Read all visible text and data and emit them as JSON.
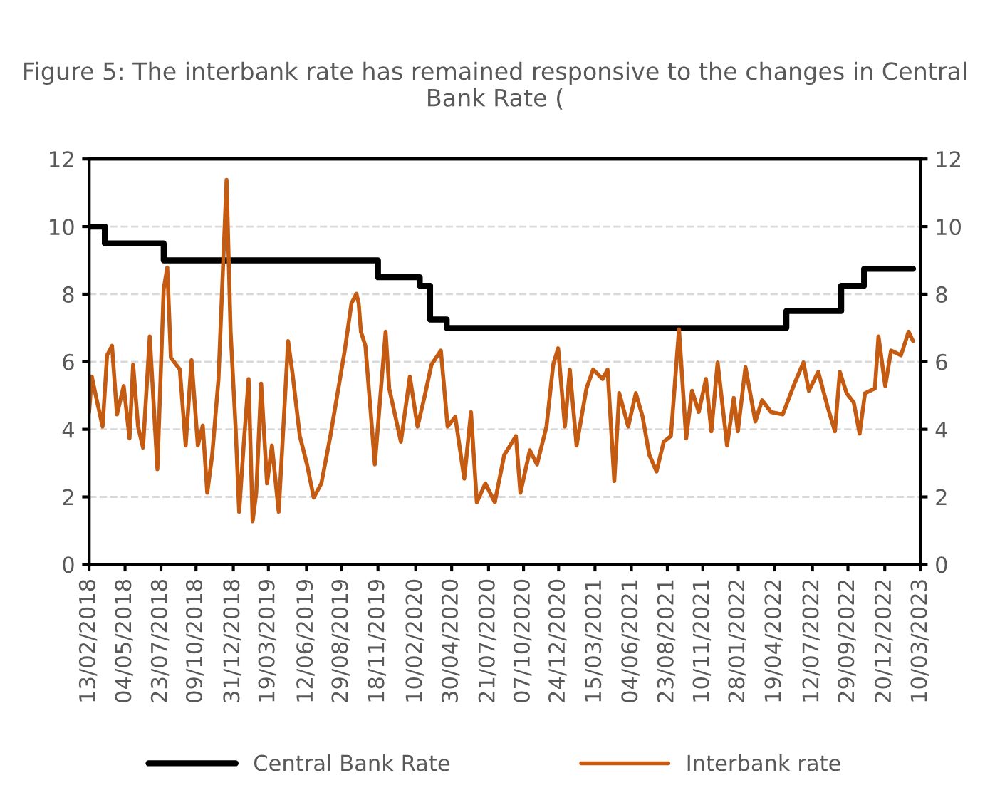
{
  "chart_data": {
    "type": "line",
    "title": "Figure 5: The interbank rate has remained responsive to the changes in Central Bank Rate (",
    "xlim": [
      "2018-02-13",
      "2023-03-10"
    ],
    "xticks": [
      {
        "value": "2018-02-13",
        "label": "13/02/2018"
      },
      {
        "value": "2018-05-04",
        "label": "04/05/2018"
      },
      {
        "value": "2018-07-23",
        "label": "23/07/2018"
      },
      {
        "value": "2018-10-09",
        "label": "09/10/2018"
      },
      {
        "value": "2018-12-31",
        "label": "31/12/2018"
      },
      {
        "value": "2019-03-19",
        "label": "19/03/2019"
      },
      {
        "value": "2019-06-12",
        "label": "12/06/2019"
      },
      {
        "value": "2019-08-29",
        "label": "29/08/2019"
      },
      {
        "value": "2019-11-18",
        "label": "18/11/2019"
      },
      {
        "value": "2020-02-10",
        "label": "10/02/2020"
      },
      {
        "value": "2020-04-30",
        "label": "30/04/2020"
      },
      {
        "value": "2020-07-21",
        "label": "21/07/2020"
      },
      {
        "value": "2020-10-07",
        "label": "07/10/2020"
      },
      {
        "value": "2020-12-24",
        "label": "24/12/2020"
      },
      {
        "value": "2021-03-15",
        "label": "15/03/2021"
      },
      {
        "value": "2021-06-04",
        "label": "04/06/2021"
      },
      {
        "value": "2021-08-23",
        "label": "23/08/2021"
      },
      {
        "value": "2021-11-10",
        "label": "10/11/2021"
      },
      {
        "value": "2022-01-28",
        "label": "28/01/2022"
      },
      {
        "value": "2022-04-19",
        "label": "19/04/2022"
      },
      {
        "value": "2022-07-12",
        "label": "12/07/2022"
      },
      {
        "value": "2022-09-29",
        "label": "29/09/2022"
      },
      {
        "value": "2022-12-20",
        "label": "20/12/2022"
      },
      {
        "value": "2023-03-10",
        "label": "10/03/2023"
      }
    ],
    "ylim": [
      0,
      12
    ],
    "yticks": [
      0,
      2,
      4,
      6,
      8,
      10,
      12
    ],
    "y2lim": [
      0,
      12
    ],
    "y2ticks": [
      0,
      2,
      4,
      6,
      8,
      10,
      12
    ],
    "grid": "y",
    "legend": "bottom",
    "series": [
      {
        "name": "Central Bank Rate",
        "color": "#000000",
        "type": "step",
        "x": [
          "2018-02-13",
          "2018-03-20",
          "2018-07-29",
          "2019-11-18",
          "2020-02-19",
          "2020-03-13",
          "2020-04-19",
          "2022-05-15",
          "2022-09-14",
          "2022-11-04",
          "2023-02-21"
        ],
        "values": [
          10,
          9.5,
          9,
          8.5,
          8.25,
          7.25,
          7,
          7.5,
          8.25,
          8.75,
          8.75
        ]
      },
      {
        "name": "Interbank rate",
        "color": "#c55a11",
        "x": [
          "2018-02-13",
          "2018-02-19",
          "2018-03-01",
          "2018-03-15",
          "2018-03-25",
          "2018-04-05",
          "2018-04-16",
          "2018-05-01",
          "2018-05-14",
          "2018-05-22",
          "2018-06-02",
          "2018-06-13",
          "2018-06-28",
          "2018-07-15",
          "2018-07-29",
          "2018-08-06",
          "2018-08-14",
          "2018-09-03",
          "2018-09-16",
          "2018-09-29",
          "2018-10-13",
          "2018-10-24",
          "2018-11-03",
          "2018-11-14",
          "2018-11-28",
          "2018-12-16",
          "2018-12-25",
          "2019-01-05",
          "2019-01-13",
          "2019-01-23",
          "2019-02-03",
          "2019-02-12",
          "2019-02-20",
          "2019-03-03",
          "2019-03-16",
          "2019-03-27",
          "2019-04-11",
          "2019-05-02",
          "2019-05-12",
          "2019-05-28",
          "2019-06-13",
          "2019-06-28",
          "2019-07-15",
          "2019-08-04",
          "2019-09-05",
          "2019-09-20",
          "2019-10-01",
          "2019-10-06",
          "2019-10-11",
          "2019-10-21",
          "2019-11-11",
          "2019-12-05",
          "2019-12-13",
          "2020-01-08",
          "2020-01-28",
          "2020-02-14",
          "2020-02-29",
          "2020-03-16",
          "2020-04-06",
          "2020-04-21",
          "2020-05-08",
          "2020-05-28",
          "2020-06-12",
          "2020-06-25",
          "2020-07-14",
          "2020-08-04",
          "2020-08-25",
          "2020-09-20",
          "2020-09-30",
          "2020-10-21",
          "2020-11-06",
          "2020-11-27",
          "2020-12-12",
          "2020-12-23",
          "2021-01-07",
          "2021-01-18",
          "2021-02-02",
          "2021-02-24",
          "2021-03-11",
          "2021-04-01",
          "2021-04-12",
          "2021-04-27",
          "2021-05-08",
          "2021-05-28",
          "2021-06-14",
          "2021-06-29",
          "2021-07-14",
          "2021-07-30",
          "2021-08-15",
          "2021-08-31",
          "2021-09-18",
          "2021-10-04",
          "2021-10-17",
          "2021-11-01",
          "2021-11-17",
          "2021-11-29",
          "2021-12-13",
          "2022-01-03",
          "2022-01-18",
          "2022-01-27",
          "2022-02-13",
          "2022-03-07",
          "2022-03-22",
          "2022-04-11",
          "2022-05-07",
          "2022-06-02",
          "2022-06-22",
          "2022-07-04",
          "2022-07-25",
          "2022-08-15",
          "2022-08-31",
          "2022-09-11",
          "2022-09-26",
          "2022-10-12",
          "2022-10-25",
          "2022-11-06",
          "2022-11-28",
          "2022-12-06",
          "2022-12-21",
          "2023-01-03",
          "2023-01-25",
          "2023-02-11",
          "2023-02-21"
        ],
        "values": [
          4.5,
          5.56,
          4.93,
          4.08,
          6.19,
          6.47,
          4.44,
          5.28,
          3.73,
          5.91,
          4.08,
          3.46,
          6.75,
          2.82,
          8.15,
          8.79,
          6.12,
          5.77,
          3.52,
          6.05,
          3.52,
          4.11,
          2.12,
          3.24,
          5.49,
          11.38,
          6.89,
          4.08,
          1.56,
          3.52,
          5.49,
          1.28,
          2.12,
          5.35,
          2.4,
          3.52,
          1.56,
          6.61,
          5.63,
          3.8,
          2.96,
          1.98,
          2.4,
          3.8,
          6.33,
          7.73,
          8.01,
          7.73,
          6.89,
          6.47,
          2.96,
          6.89,
          5.21,
          3.63,
          5.56,
          4.08,
          4.93,
          5.91,
          6.33,
          4.08,
          4.37,
          2.54,
          4.51,
          1.84,
          2.4,
          1.84,
          3.24,
          3.8,
          2.12,
          3.38,
          2.96,
          4.08,
          5.91,
          6.4,
          4.08,
          5.77,
          3.52,
          5.21,
          5.77,
          5.49,
          5.77,
          2.47,
          5.07,
          4.08,
          5.07,
          4.37,
          3.24,
          2.75,
          3.63,
          3.8,
          6.96,
          3.73,
          5.14,
          4.51,
          5.49,
          3.94,
          5.98,
          3.52,
          4.93,
          3.94,
          5.84,
          4.23,
          4.86,
          4.51,
          4.44,
          5.35,
          5.98,
          5.14,
          5.7,
          4.65,
          3.94,
          5.7,
          5.07,
          4.79,
          3.87,
          5.07,
          5.21,
          6.75,
          5.28,
          6.33,
          6.19,
          6.89,
          6.61
        ]
      }
    ]
  }
}
